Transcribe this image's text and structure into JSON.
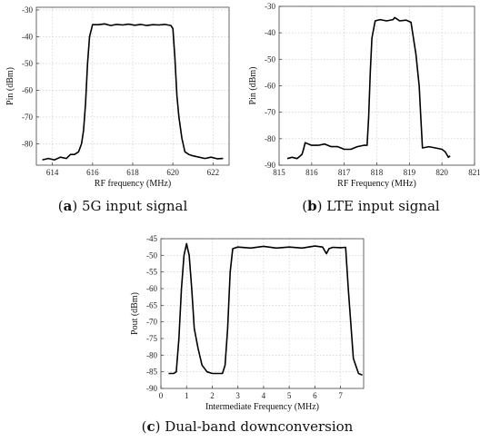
{
  "chart_data": [
    {
      "type": "line",
      "caption_letter": "a",
      "caption_text": "5G input signal",
      "xlabel": "RF frequency (MHz)",
      "ylabel": "Pin (dBm)",
      "xlim": [
        613.2,
        622.8
      ],
      "ylim": [
        -88,
        -29
      ],
      "xticks": [
        614,
        616,
        618,
        620,
        622
      ],
      "yticks": [
        -30,
        -40,
        -50,
        -60,
        -70,
        -80
      ],
      "grid": true,
      "series": [
        {
          "x": [
            613.5,
            613.8,
            614.1,
            614.4,
            614.7,
            614.9,
            615.1,
            615.3,
            615.45,
            615.55,
            615.65,
            615.75,
            615.85,
            616.0,
            616.3,
            616.6,
            616.9,
            617.2,
            617.5,
            617.8,
            618.1,
            618.4,
            618.7,
            619.0,
            619.3,
            619.6,
            619.9,
            620.0,
            620.1,
            620.2,
            620.3,
            620.45,
            620.6,
            620.8,
            621.0,
            621.3,
            621.6,
            621.9,
            622.2,
            622.5
          ],
          "y": [
            -86,
            -85.5,
            -86,
            -85,
            -85.5,
            -84,
            -84,
            -83,
            -80,
            -75,
            -65,
            -50,
            -40,
            -35.5,
            -35.5,
            -35.2,
            -35.8,
            -35.4,
            -35.6,
            -35.3,
            -35.7,
            -35.4,
            -35.8,
            -35.5,
            -35.6,
            -35.4,
            -35.8,
            -37,
            -48,
            -62,
            -70,
            -78,
            -83,
            -84,
            -84.5,
            -85,
            -85.5,
            -85,
            -85.6,
            -85.5
          ]
        }
      ]
    },
    {
      "type": "line",
      "caption_letter": "b",
      "caption_text": "LTE input signal",
      "xlabel": "RF Frequency (MHz)",
      "ylabel": "Pin (dBm)",
      "xlim": [
        815,
        821
      ],
      "ylim": [
        -90,
        -30
      ],
      "xticks": [
        815,
        816,
        817,
        818,
        819,
        820,
        821
      ],
      "yticks": [
        -30,
        -40,
        -50,
        -60,
        -70,
        -80,
        -90
      ],
      "grid": true,
      "series": [
        {
          "x": [
            815.25,
            815.4,
            815.55,
            815.7,
            815.75,
            815.8,
            815.9,
            816.0,
            816.2,
            816.4,
            816.6,
            816.8,
            817.0,
            817.2,
            817.4,
            817.6,
            817.7,
            817.75,
            817.8,
            817.85,
            817.95,
            818.1,
            818.3,
            818.5,
            818.55,
            818.7,
            818.9,
            819.05,
            819.1,
            819.2,
            819.3,
            819.35,
            819.4,
            819.6,
            819.8,
            820.0,
            820.1,
            820.2,
            820.25
          ],
          "y": [
            -87.5,
            -87,
            -87.5,
            -86,
            -84,
            -81.5,
            -82,
            -82.5,
            -82.5,
            -82,
            -83,
            -83,
            -84,
            -84,
            -83,
            -82.5,
            -82.5,
            -72,
            -55,
            -42,
            -35.5,
            -35,
            -35.5,
            -35,
            -34.2,
            -35.5,
            -35.2,
            -36,
            -40,
            -48,
            -60,
            -72,
            -83.5,
            -83,
            -83.5,
            -84,
            -85,
            -87,
            -86.5
          ]
        }
      ]
    },
    {
      "type": "line",
      "caption_letter": "c",
      "caption_text": "Dual-band downconversion",
      "xlabel": "Intermediate Frequency (MHz)",
      "ylabel": "Pout (dBm)",
      "xlim": [
        0,
        7.9
      ],
      "ylim": [
        -90,
        -45
      ],
      "xticks": [
        0,
        1,
        2,
        3,
        4,
        5,
        6,
        7
      ],
      "yticks": [
        -45,
        -50,
        -55,
        -60,
        -65,
        -70,
        -75,
        -80,
        -85,
        -90
      ],
      "grid": true,
      "series": [
        {
          "x": [
            0.3,
            0.5,
            0.6,
            0.7,
            0.8,
            0.9,
            1.0,
            1.1,
            1.2,
            1.3,
            1.45,
            1.6,
            1.8,
            2.0,
            2.2,
            2.4,
            2.5,
            2.6,
            2.7,
            2.8,
            3.0,
            3.5,
            4.0,
            4.5,
            5.0,
            5.5,
            6.0,
            6.3,
            6.45,
            6.55,
            6.7,
            7.0,
            7.2,
            7.3,
            7.5,
            7.7,
            7.85
          ],
          "y": [
            -85.5,
            -85.5,
            -85,
            -75,
            -60,
            -50,
            -46.5,
            -50,
            -60,
            -72,
            -78,
            -83,
            -85,
            -85.5,
            -85.5,
            -85.5,
            -83,
            -72,
            -55,
            -48,
            -47.5,
            -47.8,
            -47.3,
            -47.8,
            -47.5,
            -47.8,
            -47.2,
            -47.5,
            -49.5,
            -48,
            -47.6,
            -47.7,
            -47.6,
            -60,
            -81,
            -85.5,
            -86
          ]
        }
      ]
    }
  ]
}
